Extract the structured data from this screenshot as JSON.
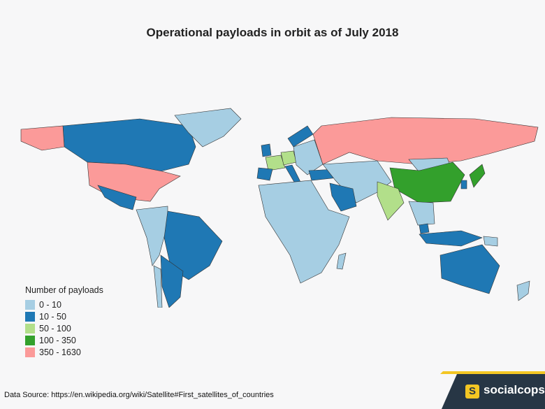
{
  "title": "Operational payloads in orbit as of July 2018",
  "legend": {
    "title": "Number of payloads",
    "items": [
      {
        "label": "0 - 10",
        "color": "#a6cee3"
      },
      {
        "label": "10 - 50",
        "color": "#1f78b4"
      },
      {
        "label": "50 - 100",
        "color": "#b2df8a"
      },
      {
        "label": "100 - 350",
        "color": "#33a02c"
      },
      {
        "label": "350 - 1630",
        "color": "#fb9a99"
      }
    ]
  },
  "source": "Data Source: https://en.wikipedia.org/wiki/Satellite#First_satellites_of_countries",
  "brand": {
    "badge": "S",
    "name": "socialcops"
  },
  "map_data": {
    "countries": [
      {
        "name": "United States",
        "bin": "350 - 1630"
      },
      {
        "name": "Russia",
        "bin": "350 - 1630"
      },
      {
        "name": "China",
        "bin": "100 - 350"
      },
      {
        "name": "Japan",
        "bin": "100 - 350"
      },
      {
        "name": "India",
        "bin": "50 - 100"
      },
      {
        "name": "France",
        "bin": "50 - 100"
      },
      {
        "name": "Germany",
        "bin": "50 - 100"
      },
      {
        "name": "Canada",
        "bin": "10 - 50"
      },
      {
        "name": "Mexico",
        "bin": "10 - 50"
      },
      {
        "name": "Brazil",
        "bin": "10 - 50"
      },
      {
        "name": "Argentina",
        "bin": "10 - 50"
      },
      {
        "name": "Australia",
        "bin": "10 - 50"
      },
      {
        "name": "Saudi Arabia",
        "bin": "10 - 50"
      },
      {
        "name": "Spain",
        "bin": "10 - 50"
      },
      {
        "name": "United Kingdom",
        "bin": "10 - 50"
      },
      {
        "name": "Italy",
        "bin": "10 - 50"
      },
      {
        "name": "Norway",
        "bin": "10 - 50"
      },
      {
        "name": "Turkey",
        "bin": "10 - 50"
      },
      {
        "name": "South Korea",
        "bin": "10 - 50"
      },
      {
        "name": "Indonesia",
        "bin": "10 - 50"
      },
      {
        "name": "Malaysia",
        "bin": "10 - 50"
      },
      {
        "name": "Greenland",
        "bin": "0 - 10"
      },
      {
        "name": "Africa",
        "bin": "0 - 10"
      },
      {
        "name": "Middle East & Central Asia",
        "bin": "0 - 10"
      },
      {
        "name": "Northern South America",
        "bin": "0 - 10"
      },
      {
        "name": "Chile",
        "bin": "0 - 10"
      },
      {
        "name": "Southeast Asia",
        "bin": "0 - 10"
      },
      {
        "name": "Mongolia",
        "bin": "0 - 10"
      },
      {
        "name": "Eastern Europe",
        "bin": "0 - 10"
      },
      {
        "name": "New Zealand",
        "bin": "0 - 10"
      },
      {
        "name": "Madagascar",
        "bin": "0 - 10"
      },
      {
        "name": "Papua New Guinea",
        "bin": "0 - 10"
      }
    ]
  }
}
